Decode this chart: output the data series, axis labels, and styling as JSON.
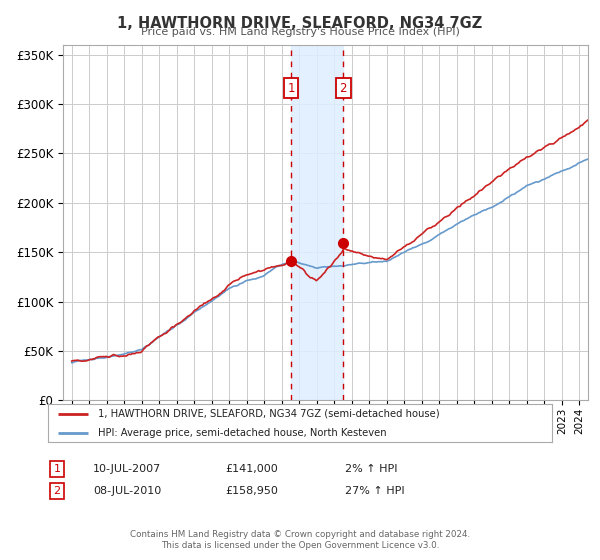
{
  "title": "1, HAWTHORN DRIVE, SLEAFORD, NG34 7GZ",
  "subtitle": "Price paid vs. HM Land Registry's House Price Index (HPI)",
  "legend_line1": "1, HAWTHORN DRIVE, SLEAFORD, NG34 7GZ (semi-detached house)",
  "legend_line2": "HPI: Average price, semi-detached house, North Kesteven",
  "sale1_date": "10-JUL-2007",
  "sale1_price": "£141,000",
  "sale1_hpi": "2% ↑ HPI",
  "sale2_date": "08-JUL-2010",
  "sale2_price": "£158,950",
  "sale2_hpi": "27% ↑ HPI",
  "footer1": "Contains HM Land Registry data © Crown copyright and database right 2024.",
  "footer2": "This data is licensed under the Open Government Licence v3.0.",
  "hpi_color": "#6699cc",
  "price_color": "#cc2222",
  "sale_marker_color": "#cc0000",
  "bg_color": "#ffffff",
  "grid_color": "#cccccc",
  "shading_color": "#ddeeff",
  "ylim": [
    0,
    360000
  ],
  "yticks": [
    0,
    50000,
    100000,
    150000,
    200000,
    250000,
    300000,
    350000
  ],
  "sale1_x": 2007.53,
  "sale1_y": 141000,
  "sale2_x": 2010.52,
  "sale2_y": 158950,
  "xmin": 1994.5,
  "xmax": 2024.5
}
